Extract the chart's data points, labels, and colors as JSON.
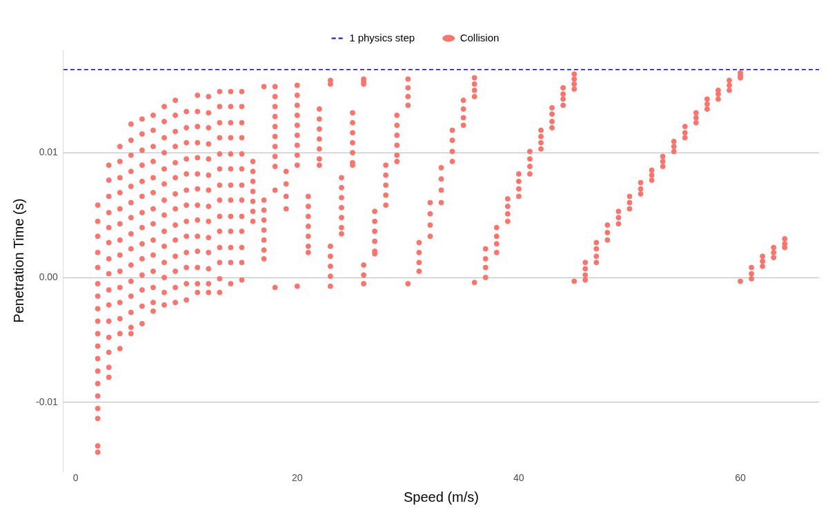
{
  "chart_data": {
    "type": "scatter",
    "xlabel": "Speed (m/s)",
    "ylabel": "Penetration Time (s)",
    "xlim": [
      -1.1,
      67.1
    ],
    "ylim": [
      -0.0155,
      0.0182
    ],
    "xticks": [
      0,
      20,
      40,
      60
    ],
    "yticks": [
      -0.01,
      {
        "value": 0,
        "label": "0.00"
      },
      0.01
    ],
    "grid": "y",
    "legend": "top",
    "marker": "circle",
    "ref_lines": [
      {
        "axis": "y",
        "value": 0.01667,
        "label": "1 physics step",
        "color": "#0000ff",
        "line_style": "dashed"
      }
    ],
    "series": [
      {
        "name": "Collision",
        "color": "#f8766d",
        "x": [
          2,
          2,
          2,
          2,
          2,
          2,
          2,
          2,
          2,
          2,
          2,
          2,
          2,
          2,
          2,
          2,
          2,
          2,
          2,
          3,
          3,
          3,
          3,
          3,
          3,
          3,
          3,
          3,
          3,
          3,
          3,
          3,
          3,
          3,
          4,
          4,
          4,
          4,
          4,
          4,
          4,
          4,
          4,
          4,
          4,
          4,
          4,
          4,
          5,
          5,
          5,
          5,
          5,
          5,
          5,
          5,
          5,
          5,
          5,
          5,
          5,
          5,
          5,
          6,
          6,
          6,
          6,
          6,
          6,
          6,
          6,
          6,
          6,
          6,
          6,
          6,
          6,
          7,
          7,
          7,
          7,
          7,
          7,
          7,
          7,
          7,
          7,
          7,
          7,
          7,
          7,
          8,
          8,
          8,
          8,
          8,
          8,
          8,
          8,
          8,
          8,
          8,
          8,
          8,
          8,
          9,
          9,
          9,
          9,
          9,
          9,
          9,
          9,
          9,
          9,
          9,
          9,
          9,
          9,
          10,
          10,
          10,
          10,
          10,
          10,
          10,
          10,
          10,
          10,
          10,
          10,
          10,
          11,
          11,
          11,
          11,
          11,
          11,
          11,
          11,
          11,
          11,
          11,
          11,
          11,
          11,
          12,
          12,
          12,
          12,
          12,
          12,
          12,
          12,
          12,
          12,
          12,
          12,
          12,
          12,
          13,
          13,
          13,
          13,
          13,
          13,
          13,
          13,
          13,
          13,
          13,
          13,
          13,
          13,
          14,
          14,
          14,
          14,
          14,
          14,
          14,
          14,
          14,
          14,
          14,
          14,
          14,
          15,
          15,
          15,
          15,
          15,
          15,
          15,
          15,
          15,
          15,
          15,
          15,
          15,
          16,
          16,
          16,
          16,
          16,
          16,
          16,
          17,
          17,
          17,
          17,
          17,
          17,
          17,
          17,
          18,
          18,
          18,
          18,
          18,
          18,
          18,
          18,
          18,
          18,
          18,
          19,
          19,
          19,
          19,
          20,
          20,
          20,
          20,
          20,
          20,
          20,
          20,
          20,
          20,
          21,
          21,
          21,
          21,
          21,
          21,
          21,
          22,
          22,
          22,
          22,
          22,
          22,
          22,
          23,
          23,
          23,
          23,
          23,
          23,
          23,
          24,
          24,
          24,
          24,
          24,
          24,
          24,
          25,
          25,
          25,
          25,
          25,
          25,
          25,
          26,
          26,
          26,
          26,
          26,
          26,
          27,
          27,
          27,
          27,
          27,
          27,
          28,
          28,
          28,
          28,
          28,
          29,
          29,
          29,
          29,
          29,
          29,
          30,
          30,
          30,
          30,
          30,
          31,
          31,
          31,
          31,
          32,
          32,
          32,
          32,
          33,
          33,
          33,
          33,
          34,
          34,
          34,
          34,
          35,
          35,
          35,
          35,
          36,
          36,
          36,
          36,
          36,
          37,
          37,
          37,
          37,
          38,
          38,
          38,
          38,
          39,
          39,
          39,
          39,
          40,
          40,
          40,
          40,
          41,
          41,
          41,
          41,
          42,
          42,
          42,
          42,
          43,
          43,
          43,
          43,
          44,
          44,
          44,
          44,
          45,
          45,
          45,
          45,
          45,
          46,
          46,
          46,
          46,
          47,
          47,
          47,
          47,
          48,
          48,
          48,
          49,
          49,
          49,
          50,
          50,
          50,
          51,
          51,
          51,
          52,
          52,
          52,
          53,
          53,
          53,
          54,
          54,
          54,
          55,
          55,
          55,
          56,
          56,
          56,
          57,
          57,
          57,
          58,
          58,
          58,
          59,
          59,
          59,
          60,
          60,
          60,
          60,
          61,
          61,
          61,
          62,
          62,
          62,
          63,
          63,
          63,
          64,
          64,
          64
        ],
        "values": [
          0.0058,
          0.0045,
          0.0033,
          0.002,
          0.0008,
          -0.0005,
          -0.0015,
          -0.0025,
          -0.0035,
          -0.0045,
          -0.0055,
          -0.0065,
          -0.0075,
          -0.0085,
          -0.0095,
          -0.0105,
          -0.0113,
          -0.0135,
          -0.014,
          0.009,
          0.0078,
          0.0065,
          0.0052,
          0.004,
          0.0028,
          0.0015,
          0.0003,
          -0.001,
          -0.0022,
          -0.0035,
          -0.0048,
          -0.006,
          -0.0072,
          -0.008,
          0.0105,
          0.0093,
          0.008,
          0.0068,
          0.0055,
          0.0043,
          0.003,
          0.0018,
          0.0005,
          -0.0008,
          -0.002,
          -0.0033,
          -0.0045,
          -0.0057,
          0.0123,
          0.011,
          0.0098,
          0.0085,
          0.0073,
          0.006,
          0.0048,
          0.0035,
          0.0023,
          0.001,
          -0.0003,
          -0.0015,
          -0.0028,
          -0.004,
          -0.0045,
          0.0127,
          0.0115,
          0.0102,
          0.009,
          0.0077,
          0.0065,
          0.0052,
          0.004,
          0.0027,
          0.0015,
          0.0002,
          -0.001,
          -0.0023,
          -0.0037,
          0.013,
          0.0118,
          0.0105,
          0.0093,
          0.008,
          0.0068,
          0.0055,
          0.0043,
          0.003,
          0.0018,
          0.0005,
          -0.0008,
          -0.002,
          -0.0027,
          0.0137,
          0.0125,
          0.0112,
          0.01,
          0.0087,
          0.0075,
          0.0062,
          0.005,
          0.0037,
          0.0025,
          0.0012,
          0,
          -0.0012,
          -0.0022,
          0.0142,
          0.013,
          0.0117,
          0.0105,
          0.0092,
          0.008,
          0.0067,
          0.0055,
          0.0042,
          0.003,
          0.0017,
          0.0005,
          -0.0008,
          -0.002,
          0.0133,
          0.012,
          0.0108,
          0.0095,
          0.0083,
          0.007,
          0.0058,
          0.0045,
          0.0033,
          0.002,
          0.0008,
          -0.0005,
          -0.0018,
          0.0146,
          0.0133,
          0.0121,
          0.0108,
          0.0096,
          0.0083,
          0.0071,
          0.0058,
          0.0046,
          0.0033,
          0.0021,
          0.0008,
          -0.0005,
          -0.0012,
          0.0145,
          0.0132,
          0.012,
          0.0107,
          0.0095,
          0.0082,
          0.007,
          0.0057,
          0.0045,
          0.0032,
          0.002,
          0.0007,
          -0.0005,
          -0.0012,
          0.0149,
          0.0137,
          0.0124,
          0.0112,
          0.0099,
          0.0087,
          0.0074,
          0.0062,
          0.0049,
          0.0037,
          0.0024,
          0.0012,
          -0.0001,
          -0.0012,
          0.0149,
          0.0137,
          0.0124,
          0.0112,
          0.0099,
          0.0087,
          0.0074,
          0.0062,
          0.0049,
          0.0037,
          0.0024,
          0.0012,
          -0.0005,
          0.0149,
          0.0137,
          0.0124,
          0.0112,
          0.0099,
          0.0087,
          0.0074,
          0.0062,
          0.0049,
          0.0037,
          0.0024,
          0.0012,
          -0.0002,
          0.0093,
          0.0085,
          0.0077,
          0.0069,
          0.0061,
          0.0053,
          0.0045,
          0.0153,
          0.0062,
          0.0054,
          0.0046,
          0.0038,
          0.003,
          0.0022,
          0.0015,
          0.0153,
          0.0145,
          0.0137,
          0.0129,
          0.0121,
          0.0113,
          0.0105,
          0.0097,
          0.0089,
          0.007,
          -0.0008,
          0.0085,
          0.0075,
          0.0065,
          0.0055,
          0.0154,
          0.0146,
          0.0138,
          0.013,
          0.0122,
          0.0114,
          0.0106,
          0.0098,
          0.009,
          -0.0007,
          0.0065,
          0.0057,
          0.0049,
          0.0041,
          0.0033,
          0.0025,
          0.002,
          0.0135,
          0.0127,
          0.0119,
          0.0111,
          0.0103,
          0.0095,
          0.009,
          0.0158,
          0.0155,
          0.0025,
          0.0017,
          0.0009,
          0.0001,
          -0.0007,
          0.008,
          0.0072,
          0.0064,
          0.0056,
          0.0048,
          0.004,
          0.0035,
          0.0132,
          0.0124,
          0.0116,
          0.0108,
          0.01,
          0.0092,
          0.009,
          0.0159,
          0.0157,
          0.0155,
          0.001,
          0.0002,
          -0.0005,
          0.0053,
          0.0045,
          0.0037,
          0.0029,
          0.0021,
          0.0019,
          0.009,
          0.0082,
          0.0074,
          0.0066,
          0.0058,
          0.013,
          0.0122,
          0.0114,
          0.0106,
          0.0098,
          0.0093,
          0.0159,
          0.0152,
          0.0145,
          0.0138,
          -0.0005,
          0.0028,
          0.002,
          0.0012,
          0.0005,
          0.006,
          0.0051,
          0.0042,
          0.0033,
          0.0088,
          0.0079,
          0.007,
          0.006,
          0.0118,
          0.011,
          0.0101,
          0.0093,
          0.0142,
          0.0135,
          0.0128,
          0.0122,
          0.016,
          0.0155,
          0.015,
          0.0145,
          -0.0004,
          0.0023,
          0.0015,
          0.0008,
          0,
          0.004,
          0.0033,
          0.0027,
          0.002,
          0.0063,
          0.0057,
          0.0051,
          0.0045,
          0.0083,
          0.0077,
          0.0071,
          0.0065,
          0.0101,
          0.0095,
          0.0089,
          0.0083,
          0.0118,
          0.0113,
          0.0108,
          0.0103,
          0.0136,
          0.0131,
          0.0125,
          0.012,
          0.0152,
          0.0147,
          0.0143,
          0.0138,
          0.0163,
          0.0159,
          0.0155,
          0.0151,
          -0.0003,
          0.0012,
          0.0007,
          0.0002,
          -0.0002,
          0.0028,
          0.0023,
          0.0017,
          0.0012,
          0.0042,
          0.0036,
          0.003,
          0.0053,
          0.0048,
          0.0043,
          0.0065,
          0.006,
          0.0055,
          0.0076,
          0.0071,
          0.0067,
          0.0086,
          0.0082,
          0.0078,
          0.0097,
          0.0093,
          0.0089,
          0.0109,
          0.0105,
          0.0101,
          0.0121,
          0.0116,
          0.0112,
          0.0132,
          0.0128,
          0.0124,
          0.0143,
          0.0139,
          0.0135,
          0.015,
          0.0147,
          0.0143,
          0.0158,
          0.0154,
          0.015,
          0.0164,
          0.0162,
          0.016,
          -0.0003,
          0.0008,
          0.0003,
          -0.0001,
          0.0017,
          0.0013,
          0.0009,
          0.0024,
          0.002,
          0.0016,
          0.0031,
          0.0027,
          0.0024
        ]
      }
    ]
  }
}
